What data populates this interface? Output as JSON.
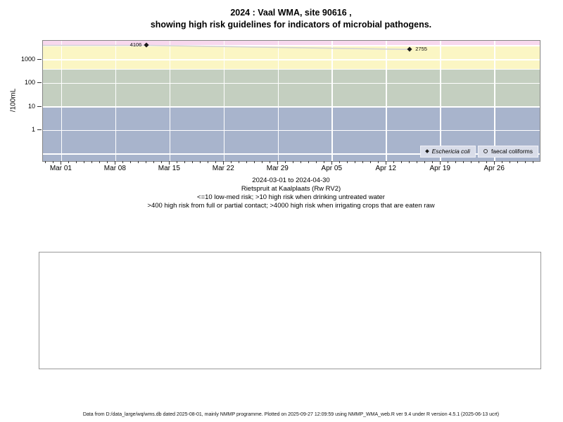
{
  "page": {
    "title_line1": "2024 : Vaal WMA, site 90616 ,",
    "title_line2": "showing high risk guidelines for indicators of microbial pathogens.",
    "footer": "Data from D:/data_large/wq/wms.db dated 2025-08-01, mainly NMMP programme. Plotted on 2025-09-27 12:09:59 using NMMP_WMA_web.R ver 9.4 under R version 4.5.1 (2025-06-13 ucrt)"
  },
  "caption": {
    "lines": [
      "2024-03-01 to 2024-04-30",
      "Rietspruit at Kaalplaats (Rw RV2)",
      "<=10 low-med risk; >10 high risk when drinking untreated water",
      ">400 high risk from full or partial contact; >4000 high risk when irrigating crops that are eaten raw"
    ]
  },
  "chart_data": {
    "type": "scatter",
    "title": "2024 : Vaal WMA, site 90616 , showing high risk guidelines for indicators of microbial pathogens.",
    "xlabel": "",
    "ylabel": "/100mL",
    "y_scale": "log10",
    "ylim": [
      0.05,
      6400
    ],
    "y_ticks": [
      1,
      10,
      100,
      1000
    ],
    "x_period_start": "2024-03-01",
    "x_period_end": "2024-04-30",
    "xlim_days": [
      -2.4,
      61.8
    ],
    "x_tick_days": [
      0,
      7,
      14,
      21,
      28,
      35,
      42,
      49,
      56
    ],
    "x_tick_labels": [
      "Mar 01",
      "Mar 08",
      "Mar 15",
      "Mar 22",
      "Mar 29",
      "Apr 05",
      "Apr 12",
      "Apr 19",
      "Apr 26"
    ],
    "minor_tick_every_days": 1,
    "grid": {
      "h_white_at": [
        0.1,
        1,
        10,
        100,
        1000,
        400,
        4000
      ],
      "v_white_at_days": [
        0,
        7,
        14,
        21,
        28,
        35,
        42,
        49,
        56
      ]
    },
    "risk_bands": [
      {
        "name": "low-med risk",
        "from": 0.05,
        "to": 10,
        "color": "#a8b4cc"
      },
      {
        "name": "high risk when drinking untreated water",
        "from": 10,
        "to": 400,
        "color": "#c4cfc0"
      },
      {
        "name": "high risk from full or partial contact",
        "from": 400,
        "to": 4000,
        "color": "#fbf6c4"
      },
      {
        "name": "high risk when irrigating crops that are eaten raw",
        "from": 4000,
        "to": 6400,
        "color": "#f8d8ee"
      }
    ],
    "series": [
      {
        "name": "Eschericia coli",
        "marker": "filled-diamond",
        "line_color": "#d3d3d3",
        "line_enters_left_edge_at_value": 4106,
        "points": [
          {
            "day": 11,
            "date_approx": "2024-03-12",
            "value": 4106,
            "label": "4106",
            "label_side": "left"
          },
          {
            "day": 45,
            "date_approx": "2024-04-15",
            "value": 2755,
            "label": "2755",
            "label_side": "right"
          }
        ]
      },
      {
        "name": "faecal coliforms",
        "marker": "open-circle",
        "line_color": "#d3d3d3",
        "points": []
      }
    ],
    "legend": {
      "position": "bottom-right-inside",
      "entries": [
        {
          "marker": "filled-diamond",
          "label": "Eschericia coli",
          "italic": true
        },
        {
          "marker": "open-circle",
          "label": "faecal coliforms",
          "italic": false
        }
      ]
    }
  },
  "colors": {
    "panel_border": "#858585",
    "gridline": "#ffffff",
    "tick": "#333333",
    "marker": "#1a1a1a",
    "series_line": "#d3d3d3",
    "legend_bg": "#d9dde9",
    "empty_box_border": "#999999"
  }
}
